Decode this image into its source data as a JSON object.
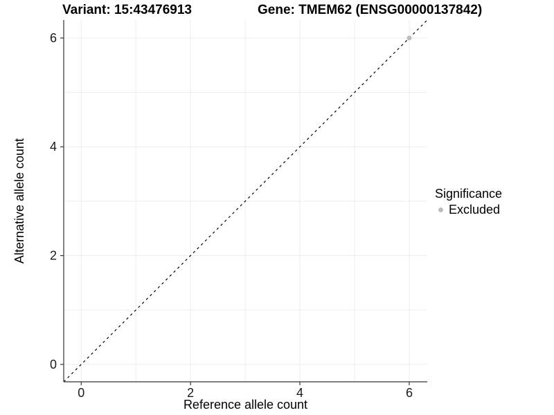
{
  "chart_data": {
    "type": "scatter",
    "title_left": "Variant: 15:43476913",
    "title_right": "Gene: TMEM62 (ENSG00000137842)",
    "xlabel": "Reference allele count",
    "ylabel": "Alternative allele count",
    "xlim": [
      -0.32,
      6.33
    ],
    "ylim": [
      -0.32,
      6.33
    ],
    "xticks": [
      0,
      2,
      4,
      6
    ],
    "yticks": [
      0,
      2,
      4,
      6
    ],
    "minor_gridlines_x": [
      1,
      3,
      5
    ],
    "minor_gridlines_y": [
      1,
      3,
      5
    ],
    "grid": "on",
    "series": [
      {
        "name": "Excluded",
        "color": "#bdbdbd",
        "points": [
          {
            "x": 6,
            "y": 6
          }
        ]
      }
    ],
    "reference_line": {
      "equation": "y = x",
      "style": "dashed",
      "color": "#000000",
      "x_start": -0.32,
      "y_start": -0.32,
      "x_end": 6.33,
      "y_end": 6.33
    },
    "legend": {
      "title": "Significance",
      "position": "right",
      "entries": [
        {
          "label": "Excluded",
          "color": "#bdbdbd"
        }
      ]
    },
    "colors": {
      "grid": "#ececec",
      "axis_line": "#333333",
      "tick_text": "#1a1a1a",
      "title_text": "#000000"
    }
  }
}
